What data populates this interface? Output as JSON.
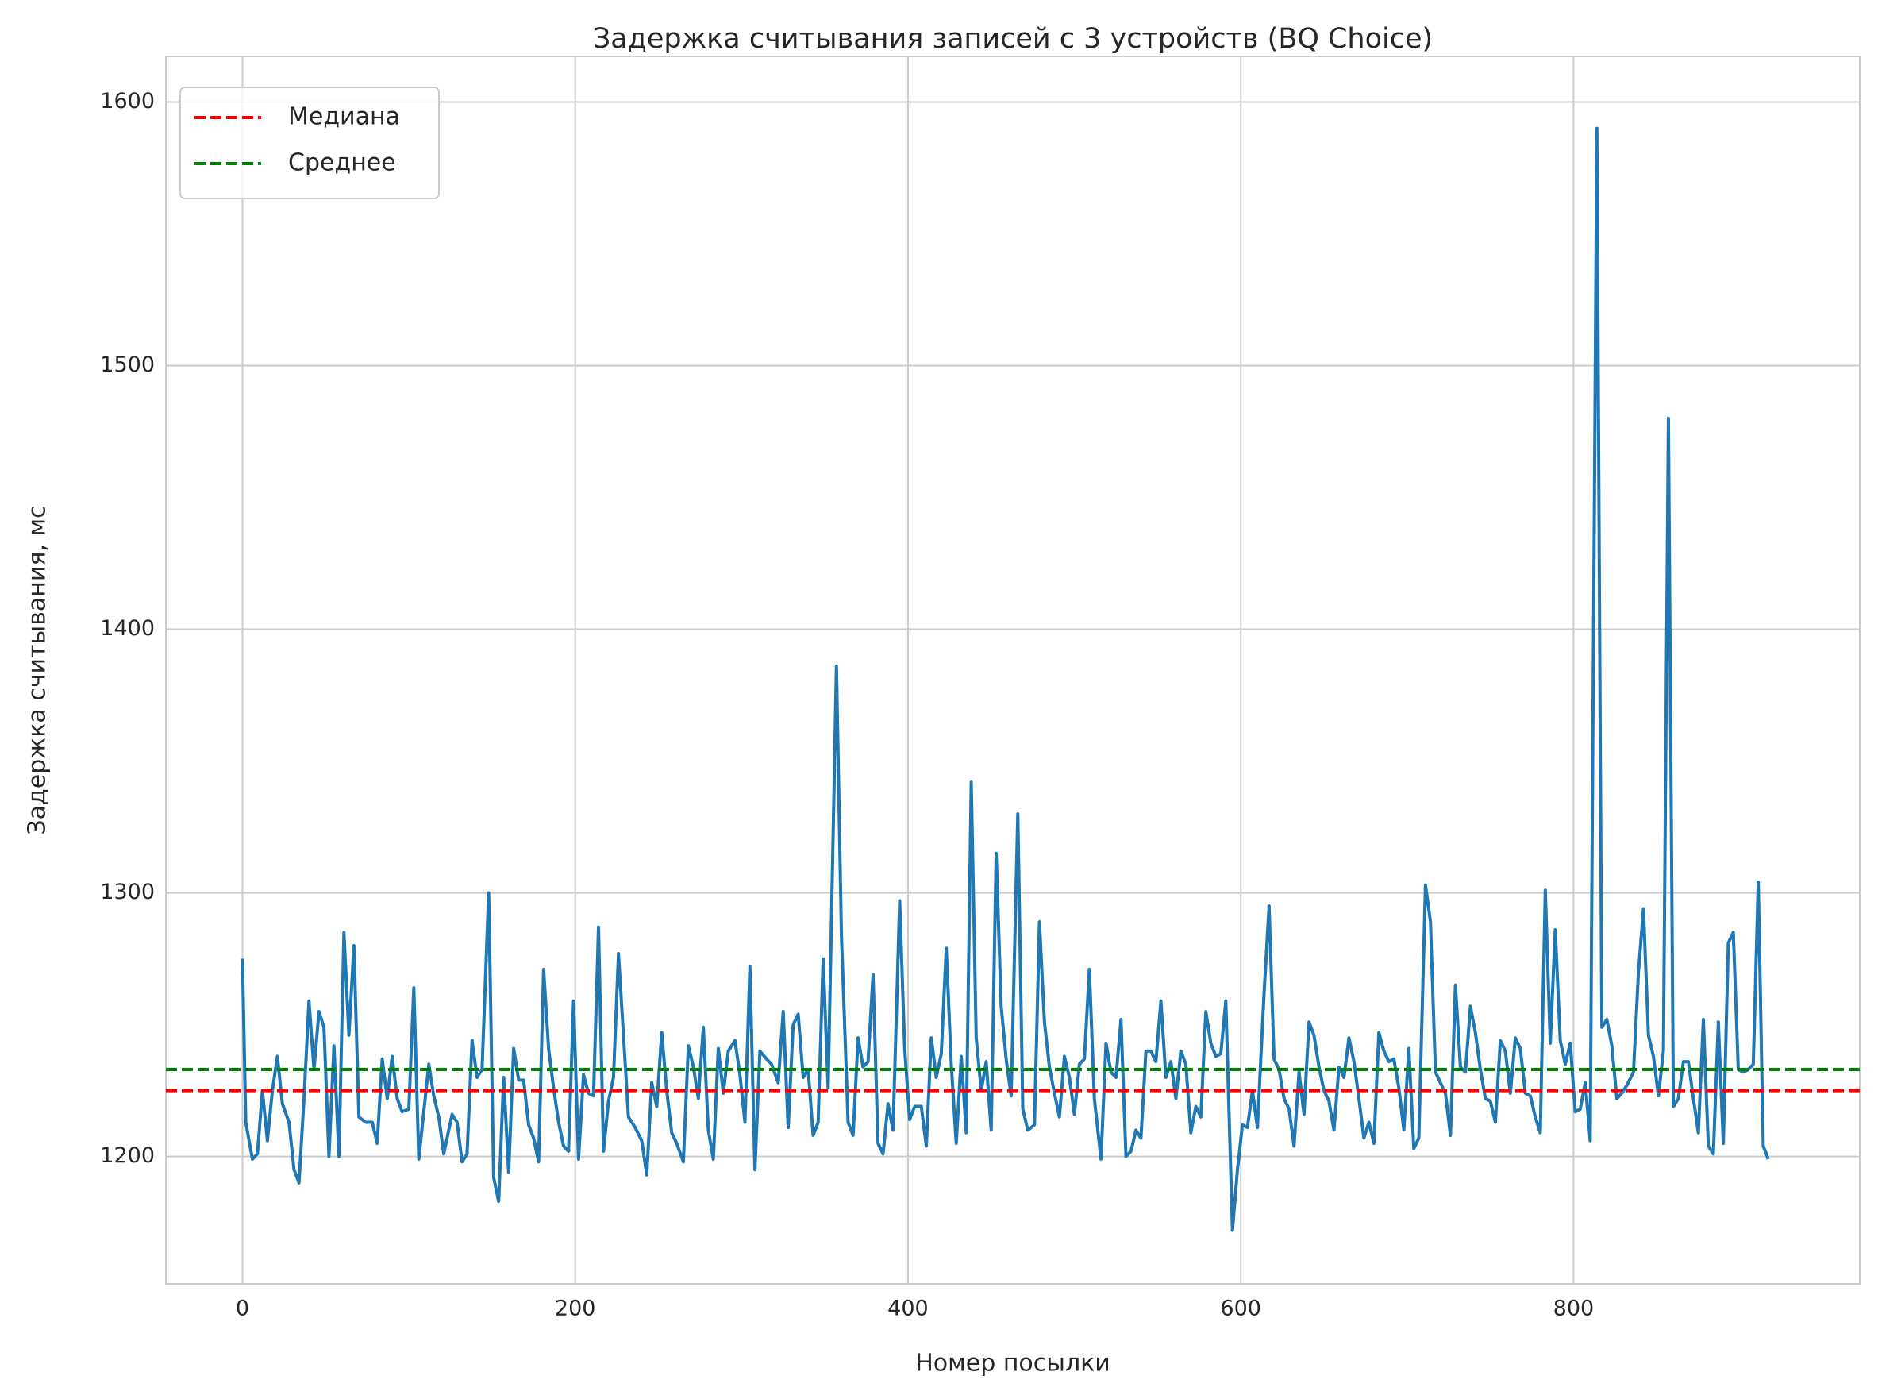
{
  "chart_data": {
    "type": "line",
    "title": "Задержка считывания записей с 3 устройств (BQ Choice)",
    "x_label": "Номер посылки",
    "y_label": "Задержка считывания, мс",
    "xlim": [
      -46,
      972
    ],
    "ylim": [
      1151.7,
      1617.3
    ],
    "xticks": [
      0,
      200,
      400,
      600,
      800
    ],
    "yticks": [
      1200,
      1300,
      1400,
      1500,
      1600
    ],
    "grid": true,
    "legend": "upper left",
    "series": [
      {
        "color": "#1f77b4",
        "x": [
          0,
          2,
          6,
          9,
          12,
          15,
          18,
          21,
          24,
          28,
          31,
          34,
          37,
          40,
          43,
          46,
          49,
          52,
          55,
          58,
          61,
          64,
          67,
          70,
          74,
          78,
          81,
          84,
          87,
          90,
          93,
          96,
          100,
          103,
          106,
          109,
          112,
          115,
          118,
          121,
          126,
          129,
          132,
          135,
          138,
          141,
          144,
          148,
          151,
          154,
          157,
          160,
          163,
          166,
          169,
          172,
          175,
          178,
          181,
          184,
          187,
          190,
          193,
          196,
          199,
          202,
          205,
          208,
          211,
          214,
          217,
          220,
          223,
          226,
          229,
          232,
          236,
          240,
          243,
          246,
          249,
          252,
          255,
          258,
          261,
          265,
          268,
          271,
          274,
          277,
          280,
          283,
          286,
          289,
          292,
          296,
          299,
          302,
          305,
          308,
          311,
          315,
          318,
          322,
          325,
          328,
          331,
          334,
          337,
          340,
          343,
          346,
          349,
          352,
          357,
          360,
          364,
          367,
          370,
          373,
          376,
          379,
          382,
          385,
          388,
          391,
          395,
          398,
          401,
          404,
          408,
          411,
          414,
          417,
          420,
          423,
          426,
          429,
          432,
          435,
          438,
          441,
          444,
          447,
          450,
          453,
          456,
          459,
          462,
          466,
          469,
          472,
          476,
          479,
          482,
          485,
          488,
          491,
          494,
          497,
          500,
          503,
          506,
          509,
          512,
          516,
          519,
          522,
          525,
          528,
          531,
          534,
          537,
          540,
          543,
          546,
          549,
          552,
          555,
          558,
          561,
          564,
          567,
          570,
          573,
          576,
          579,
          582,
          585,
          588,
          591,
          595,
          598,
          601,
          604,
          607,
          610,
          614,
          617,
          620,
          623,
          626,
          629,
          632,
          635,
          638,
          641,
          644,
          647,
          650,
          653,
          656,
          659,
          662,
          665,
          668,
          671,
          674,
          677,
          680,
          683,
          686,
          689,
          692,
          695,
          698,
          701,
          704,
          707,
          711,
          714,
          717,
          720,
          723,
          726,
          729,
          732,
          735,
          738,
          741,
          744,
          747,
          750,
          753,
          756,
          759,
          762,
          765,
          768,
          771,
          774,
          777,
          780,
          783,
          786,
          789,
          792,
          795,
          798,
          801,
          804,
          807,
          810,
          814,
          817,
          820,
          823,
          826,
          829,
          832,
          836,
          839,
          842,
          845,
          848,
          851,
          854,
          857,
          860,
          863,
          866,
          869,
          872,
          875,
          878,
          881,
          884,
          887,
          890,
          893,
          896,
          899,
          902,
          905,
          908,
          911,
          914,
          917
        ],
        "values": [
          1275,
          1213,
          1199,
          1201,
          1225,
          1206,
          1225,
          1238,
          1220,
          1213,
          1195,
          1190,
          1222,
          1259,
          1233,
          1255,
          1249,
          1200,
          1242,
          1200,
          1285,
          1246,
          1280,
          1215,
          1213,
          1213,
          1205,
          1237,
          1222,
          1238,
          1222,
          1217,
          1218,
          1264,
          1199,
          1217,
          1235,
          1223,
          1215,
          1201,
          1216,
          1213,
          1198,
          1201,
          1244,
          1230,
          1233,
          1300,
          1192,
          1183,
          1230,
          1194,
          1241,
          1229,
          1229,
          1212,
          1207,
          1198,
          1271,
          1241,
          1226,
          1213,
          1204,
          1202,
          1259,
          1199,
          1231,
          1224,
          1223,
          1287,
          1202,
          1221,
          1230,
          1277,
          1246,
          1215,
          1211,
          1206,
          1193,
          1228,
          1219,
          1247,
          1225,
          1209,
          1205,
          1198,
          1242,
          1234,
          1222,
          1249,
          1210,
          1199,
          1241,
          1224,
          1240,
          1244,
          1231,
          1213,
          1272,
          1195,
          1240,
          1237,
          1235,
          1228,
          1255,
          1211,
          1250,
          1254,
          1230,
          1233,
          1208,
          1213,
          1275,
          1226,
          1386,
          1284,
          1213,
          1208,
          1245,
          1234,
          1236,
          1269,
          1205,
          1201,
          1220,
          1210,
          1297,
          1241,
          1214,
          1219,
          1219,
          1204,
          1245,
          1230,
          1239,
          1279,
          1235,
          1205,
          1238,
          1209,
          1342,
          1245,
          1225,
          1236,
          1210,
          1315,
          1257,
          1237,
          1223,
          1330,
          1218,
          1210,
          1212,
          1289,
          1251,
          1234,
          1224,
          1215,
          1238,
          1230,
          1216,
          1235,
          1237,
          1271,
          1222,
          1199,
          1243,
          1232,
          1230,
          1252,
          1200,
          1202,
          1210,
          1207,
          1240,
          1240,
          1236,
          1259,
          1230,
          1236,
          1222,
          1240,
          1235,
          1209,
          1219,
          1215,
          1255,
          1243,
          1238,
          1239,
          1259,
          1172,
          1195,
          1212,
          1211,
          1225,
          1211,
          1262,
          1295,
          1237,
          1233,
          1222,
          1218,
          1204,
          1232,
          1216,
          1251,
          1246,
          1234,
          1225,
          1221,
          1210,
          1234,
          1230,
          1245,
          1236,
          1222,
          1207,
          1213,
          1205,
          1247,
          1240,
          1236,
          1237,
          1226,
          1210,
          1241,
          1203,
          1207,
          1303,
          1289,
          1232,
          1228,
          1224,
          1208,
          1265,
          1234,
          1232,
          1257,
          1247,
          1233,
          1222,
          1221,
          1213,
          1244,
          1240,
          1224,
          1245,
          1241,
          1224,
          1223,
          1215,
          1209,
          1301,
          1243,
          1286,
          1244,
          1235,
          1243,
          1217,
          1218,
          1228,
          1206,
          1590,
          1249,
          1252,
          1242,
          1222,
          1224,
          1227,
          1232,
          1270,
          1294,
          1246,
          1238,
          1223,
          1240,
          1480,
          1219,
          1222,
          1236,
          1236,
          1222,
          1209,
          1252,
          1204,
          1201,
          1251,
          1205,
          1281,
          1285,
          1233,
          1232,
          1233,
          1235,
          1304,
          1204,
          1199
        ]
      }
    ],
    "hlines": [
      {
        "name": "Медиана",
        "value": 1225,
        "color": "#ff0000"
      },
      {
        "name": "Среднее",
        "value": 1233,
        "color": "#008000"
      }
    ]
  }
}
